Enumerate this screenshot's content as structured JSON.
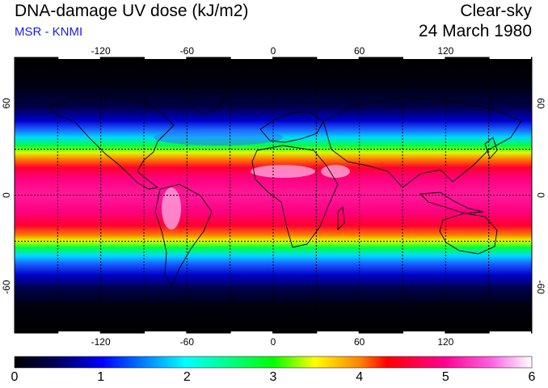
{
  "header": {
    "title": "DNA-damage UV dose (kJ/m2)",
    "subtitle": "MSR - KNMI",
    "condition": "Clear-sky",
    "date": "24 March 1980"
  },
  "map": {
    "projection": "equirectangular",
    "lon_range": [
      -180,
      180
    ],
    "lat_range": [
      -90,
      90
    ],
    "lon_ticks": [
      "-120",
      "-60",
      "0",
      "60",
      "120"
    ],
    "lat_ticks": [
      "60",
      "0",
      "-60"
    ],
    "gridlines": "dashed every 30 degrees",
    "colormap": "uv-dose"
  },
  "colorbar": {
    "min": 0,
    "max": 6,
    "labels": [
      "0",
      "1",
      "2",
      "3",
      "4",
      "5",
      "6"
    ],
    "colors": [
      "#000000",
      "#0000ff",
      "#00e0ff",
      "#00ff00",
      "#ffff00",
      "#ff0000",
      "#ff00cc",
      "#ffffff"
    ]
  }
}
